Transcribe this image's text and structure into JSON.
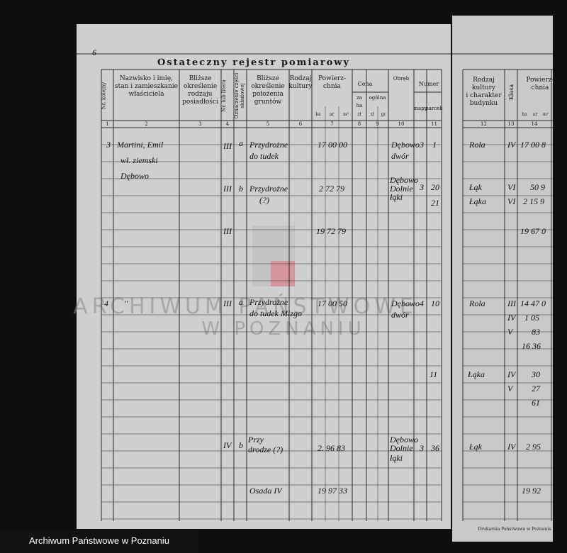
{
  "page_number": "6",
  "title": "Ostateczny rejestr pomiarowy",
  "left_columns": [
    {
      "label": [
        "Nr. kolejny"
      ],
      "number": "1"
    },
    {
      "label": [
        "Nazwisko i imię,",
        "stan i zamieszkanie",
        "właściciela"
      ],
      "number": "2"
    },
    {
      "label": [
        "Bliższe",
        "określenie",
        "rodzaju",
        "posiadłości"
      ],
      "number": "3"
    },
    {
      "label": [
        "Nr. lub litera"
      ],
      "number": "4"
    },
    {
      "label": [
        "Oznaczenie części",
        "składowej"
      ],
      "number": ""
    },
    {
      "label": [
        "Bliższe",
        "określenie",
        "położenia",
        "gruntów"
      ],
      "number": "5"
    },
    {
      "label": [
        "Rodzaj",
        "kultury"
      ],
      "number": "6"
    },
    {
      "label": [
        "Powierz-",
        "chnia"
      ],
      "number": "7"
    },
    {
      "label": [
        "za",
        "ha"
      ],
      "number": "8"
    },
    {
      "label": [
        "ogólna"
      ],
      "number": "9"
    },
    {
      "label": [
        "Obręb"
      ],
      "number": "10"
    },
    {
      "label": [
        "mapy"
      ],
      "number": ""
    },
    {
      "label": [
        "parceli"
      ],
      "number": "11"
    }
  ],
  "cena": "Cena",
  "numer": "Numer",
  "area_units": [
    "ha",
    "ar",
    "m²"
  ],
  "price_units": [
    "zł",
    "zł",
    "gr"
  ],
  "right_columns": [
    {
      "label": [
        "Rodzaj",
        "kultury",
        "i charakter",
        "budynku"
      ],
      "number": "12"
    },
    {
      "label": [
        "Klasa"
      ],
      "number": "13"
    },
    {
      "label": [
        "Powierz-",
        "chnia"
      ],
      "number": "14"
    }
  ],
  "entries": [
    "3",
    "Martini, Emil",
    "wł. ziemski",
    "Dębowo",
    "III",
    "a",
    "Przydrożne",
    "do tudek",
    "17 00 00",
    "Dębowo",
    "dwór",
    "3",
    "1",
    "III",
    "b",
    "Przydrożne",
    "(?)",
    "2 72 79",
    "Dębowo",
    "Dolnie",
    "łąki",
    "3",
    "20",
    "21",
    "III",
    "19 72 79",
    "4",
    "''",
    "III",
    "a",
    "Przydrożne",
    "do tudek Mizgo",
    "17 00 50",
    "Dębowo",
    "dwór",
    "4",
    "10",
    "11",
    "IV",
    "b",
    "Przy",
    "drodze (?)",
    "2. 96 83",
    "Dębowo",
    "Dolnie",
    "łąki",
    "3",
    "36",
    "Osada IV",
    "19 97 33",
    "Rola",
    "IV",
    "17 00 8",
    "Łąk",
    "VI",
    "50 9",
    "Łąka",
    "VI",
    "2 15 9",
    "19 67 0",
    "Rola",
    "III",
    "14 47 0",
    "IV",
    "1 05",
    "V",
    "83",
    "16 36",
    "Łąka",
    "IV",
    "30",
    "V",
    "27",
    "61",
    "Łąk",
    "IV",
    "2 95",
    "19 92"
  ],
  "watermark": [
    "ARCHIWUM PAŃSTWOWE",
    "W POZNANIU"
  ],
  "printer": "Drukarnia Państwowa w Poznaniu",
  "footer": "Archiwum Państwowe w Poznaniu"
}
